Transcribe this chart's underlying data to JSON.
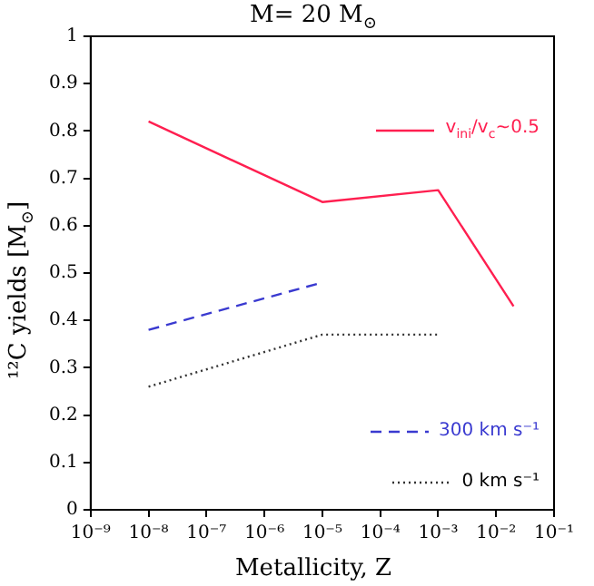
{
  "chart_data": {
    "type": "line",
    "title": "M= 20 M$_{⊙}$",
    "xlabel": "Metallicity, Z",
    "ylabel": "¹²C yields [M$_{⊙}$]",
    "log": "x",
    "grid": false,
    "legend": "right",
    "marker": "none",
    "xlim": [
      1e-09,
      0.1
    ],
    "xticks": [
      {
        "value": 1e-09,
        "label": "10⁻⁹"
      },
      {
        "value": 1e-08,
        "label": "10⁻⁸"
      },
      {
        "value": 1e-07,
        "label": "10⁻⁷"
      },
      {
        "value": 1e-06,
        "label": "10⁻⁶"
      },
      {
        "value": 1e-05,
        "label": "10⁻⁵"
      },
      {
        "value": 0.0001,
        "label": "10⁻⁴"
      },
      {
        "value": 0.001,
        "label": "10⁻³"
      },
      {
        "value": 0.01,
        "label": "10⁻²"
      },
      {
        "value": 0.1,
        "label": "10⁻¹"
      }
    ],
    "ylim": [
      0,
      1
    ],
    "yticks": [
      0,
      0.1,
      0.2,
      0.3,
      0.4,
      0.5,
      0.6,
      0.7,
      0.8,
      0.9,
      1
    ],
    "series": [
      {
        "name": "v$_{ini}$/v$_{c}$~0.5",
        "color": "#ff1f50",
        "line_style": "solid",
        "x": [
          1e-08,
          1e-05,
          0.001,
          0.02
        ],
        "values": [
          0.82,
          0.65,
          0.675,
          0.43
        ]
      },
      {
        "name": "300 km s⁻¹",
        "color": "#3a3ad0",
        "line_style": "dashed",
        "x": [
          1e-08,
          1e-05
        ],
        "values": [
          0.38,
          0.48
        ]
      },
      {
        "name": "0 km s⁻¹",
        "color": "#333333",
        "line_style": "dotted",
        "x": [
          1e-08,
          1e-05,
          0.001
        ],
        "values": [
          0.26,
          0.37,
          0.37
        ]
      }
    ]
  }
}
